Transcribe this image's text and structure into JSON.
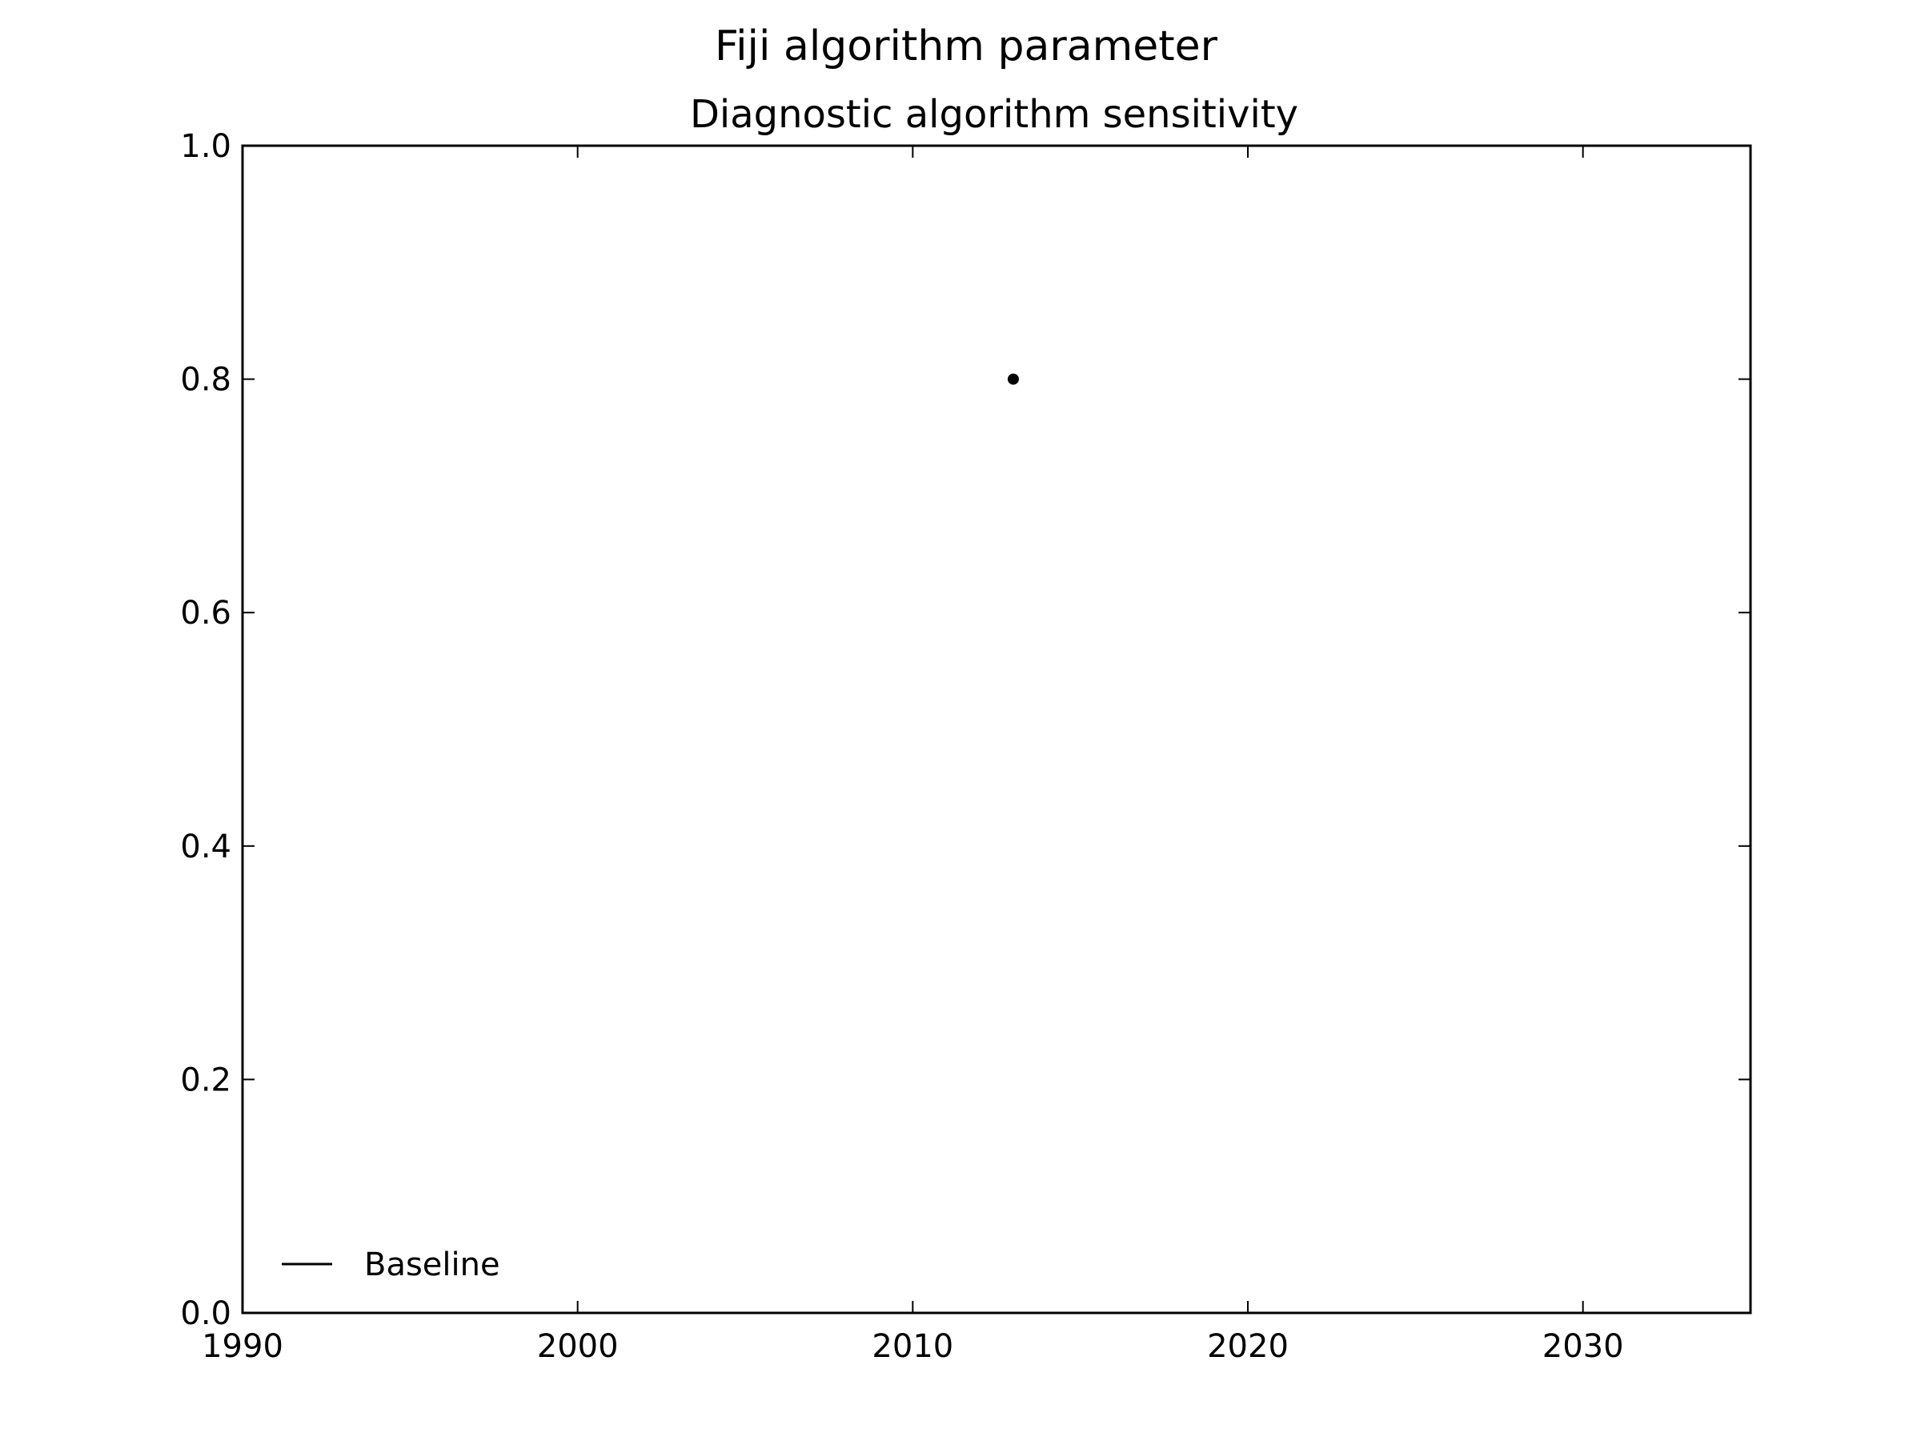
{
  "chart_data": {
    "type": "scatter",
    "suptitle": "Fiji algorithm parameter",
    "title": "Diagnostic algorithm sensitivity",
    "xlabel": "",
    "ylabel": "",
    "xlim": [
      1990,
      2035
    ],
    "ylim": [
      0,
      1
    ],
    "x_ticks": [
      1990,
      2000,
      2010,
      2020,
      2030
    ],
    "y_ticks": [
      0.0,
      0.2,
      0.4,
      0.6,
      0.8,
      1.0
    ],
    "grid": false,
    "legend": {
      "position": "lower-left",
      "entries": [
        {
          "label": "Baseline",
          "marker": "line",
          "color": "#000000"
        }
      ]
    },
    "series": [
      {
        "marker": "point",
        "color": "#000000",
        "points": [
          {
            "x": 2013,
            "y": 0.8
          }
        ]
      }
    ]
  }
}
